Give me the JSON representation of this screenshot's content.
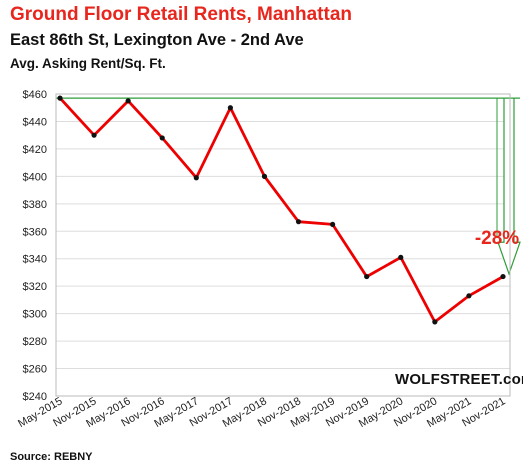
{
  "header": {
    "title": "Ground  Floor Retail Rents, Manhattan",
    "subtitle": "East 86th St, Lexington Ave - 2nd Ave",
    "ylabel": "Avg. Asking Rent/Sq. Ft."
  },
  "footer": {
    "source": "Source: REBNY",
    "brand": "WOLFSTREET.com"
  },
  "chart_data": {
    "type": "line",
    "title": "Ground  Floor Retail Rents, Manhattan",
    "subtitle": "East 86th St, Lexington Ave - 2nd Ave",
    "ylabel": "Avg. Asking Rent/Sq. Ft.",
    "categories": [
      "May-2015",
      "Nov-2015",
      "May-2016",
      "Nov-2016",
      "May-2017",
      "Nov-2017",
      "May-2018",
      "Nov-2018",
      "May-2019",
      "Nov-2019",
      "May-2020",
      "Nov-2020",
      "May-2021",
      "Nov-2021"
    ],
    "series": [
      {
        "values": [
          457,
          430,
          455,
          428,
          399,
          450,
          400,
          367,
          365,
          327,
          341,
          294,
          313,
          327
        ]
      }
    ],
    "ylim": [
      240,
      460
    ],
    "yticks": [
      "$240",
      "$260",
      "$280",
      "$300",
      "$320",
      "$340",
      "$360",
      "$380",
      "$400",
      "$420",
      "$440",
      "$460"
    ],
    "grid": true,
    "reference_line": 457,
    "annotation": "-28%",
    "colors": {
      "line": "#ee0000",
      "reference": "#2e9e3a",
      "annotation": "#e8261d",
      "grid": "#dddddd"
    }
  }
}
